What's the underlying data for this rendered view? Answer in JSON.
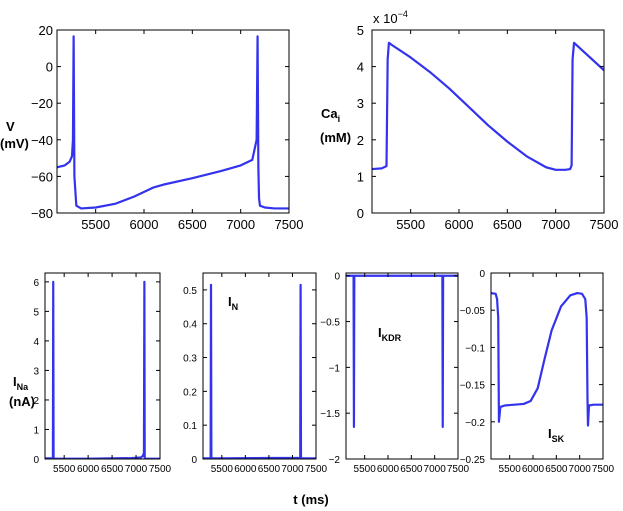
{
  "colors": {
    "trace": "#3333ee",
    "axis": "#000000"
  },
  "xlabel": "t (ms)",
  "chart_data": [
    {
      "id": "voltage",
      "type": "line",
      "ylabel_line1": "V",
      "ylabel_line2": "(mV)",
      "xlim": [
        5100,
        7500
      ],
      "ylim": [
        -80,
        20
      ],
      "xticks": [
        "5500",
        "6000",
        "6500",
        "7000",
        "7500"
      ],
      "xtick_values": [
        5500,
        6000,
        6500,
        7000,
        7500
      ],
      "yticks": [
        "-80",
        "-60",
        "-40",
        "-20",
        "0",
        "20"
      ],
      "ytick_values": [
        -80,
        -60,
        -40,
        -20,
        0,
        20
      ],
      "series": [
        {
          "name": "V",
          "x": [
            5100,
            5180,
            5230,
            5255,
            5265,
            5272,
            5280,
            5300,
            5350,
            5500,
            5700,
            5900,
            6100,
            6200,
            6500,
            6800,
            7000,
            7120,
            7165,
            7175,
            7183,
            7190,
            7200,
            7250,
            7350,
            7500
          ],
          "y": [
            -55,
            -54,
            -52,
            -49,
            -40,
            16.5,
            -60,
            -76,
            -77.5,
            -77,
            -75,
            -71,
            -66,
            -64.5,
            -61,
            -57,
            -54,
            -51,
            -40,
            16.5,
            -55,
            -72,
            -76,
            -77,
            -77.5,
            -77.5
          ]
        }
      ]
    },
    {
      "id": "calcium",
      "type": "line",
      "ylabel_main": "Ca",
      "ylabel_sub": "i",
      "ylabel_line2": "(mM)",
      "multiplier_base": "x 10",
      "multiplier_exp": "−4",
      "xlim": [
        5100,
        7500
      ],
      "ylim": [
        0,
        5
      ],
      "xticks": [
        "5500",
        "6000",
        "6500",
        "7000",
        "7500"
      ],
      "xtick_values": [
        5500,
        6000,
        6500,
        7000,
        7500
      ],
      "yticks": [
        "0",
        "1",
        "2",
        "3",
        "4",
        "5"
      ],
      "ytick_values": [
        0,
        1,
        2,
        3,
        4,
        5
      ],
      "series": [
        {
          "name": "Ca_i",
          "x": [
            5100,
            5200,
            5250,
            5262,
            5275,
            5300,
            5500,
            5700,
            5900,
            6100,
            6300,
            6500,
            6700,
            6900,
            7000,
            7100,
            7150,
            7165,
            7175,
            7190,
            7500
          ],
          "y": [
            1.2,
            1.22,
            1.28,
            4.2,
            4.65,
            4.6,
            4.25,
            3.85,
            3.4,
            2.9,
            2.4,
            1.95,
            1.55,
            1.25,
            1.18,
            1.18,
            1.2,
            1.3,
            4.2,
            4.65,
            3.9
          ]
        }
      ]
    },
    {
      "id": "ina",
      "type": "line",
      "ylabel_main": "I",
      "ylabel_sub": "Na",
      "ylabel_line2": "(nA)",
      "xlim": [
        5100,
        7500
      ],
      "ylim": [
        0,
        6.3
      ],
      "xticks": [
        "5500",
        "6000",
        "6500",
        "7000",
        "7500"
      ],
      "xtick_values": [
        5500,
        6000,
        6500,
        7000,
        7500
      ],
      "yticks": [
        "0",
        "1",
        "2",
        "3",
        "4",
        "5",
        "6"
      ],
      "ytick_values": [
        0,
        1,
        2,
        3,
        4,
        5,
        6
      ],
      "series": [
        {
          "name": "I_Na",
          "x": [
            5100,
            5250,
            5265,
            5272,
            5279,
            5300,
            5500,
            6000,
            6500,
            6900,
            7100,
            7140,
            7165,
            7174,
            7181,
            7200,
            7500
          ],
          "y": [
            0.02,
            0.02,
            0.05,
            6.0,
            0.02,
            0.01,
            0.01,
            0.01,
            0.02,
            0.03,
            0.05,
            0.1,
            0.2,
            6.0,
            0.02,
            0.01,
            0.01
          ]
        }
      ]
    },
    {
      "id": "in",
      "type": "line",
      "annotation_main": "I",
      "annotation_sub": "N",
      "xlim": [
        5100,
        7500
      ],
      "ylim": [
        0,
        0.55
      ],
      "xticks": [
        "5500",
        "6000",
        "6500",
        "7000",
        "7500"
      ],
      "xtick_values": [
        5500,
        6000,
        6500,
        7000,
        7500
      ],
      "yticks": [
        "0",
        "0.1",
        "0.2",
        "0.3",
        "0.4",
        "0.5"
      ],
      "ytick_values": [
        0,
        0.1,
        0.2,
        0.3,
        0.4,
        0.5
      ],
      "series": [
        {
          "name": "I_N",
          "x": [
            5100,
            5262,
            5270,
            5278,
            5500,
            6500,
            7165,
            7173,
            7181,
            7500
          ],
          "y": [
            0.002,
            0.002,
            0.515,
            0.002,
            0.002,
            0.003,
            0.003,
            0.515,
            0.002,
            0.002
          ]
        }
      ]
    },
    {
      "id": "ikdr",
      "type": "line",
      "annotation_main": "I",
      "annotation_sub": "KDR",
      "xlim": [
        5100,
        7500
      ],
      "ylim": [
        -2,
        0.03
      ],
      "xticks": [
        "5500",
        "6000",
        "6500",
        "7000",
        "7500"
      ],
      "xtick_values": [
        5500,
        6000,
        6500,
        7000,
        7500
      ],
      "yticks": [
        "-2",
        "-1.5",
        "-1",
        "-0.5",
        "0"
      ],
      "ytick_values": [
        -2,
        -1.5,
        -1,
        -0.5,
        0
      ],
      "series": [
        {
          "name": "I_KDR",
          "x": [
            5100,
            5262,
            5270,
            5278,
            5500,
            6500,
            7165,
            7173,
            7181,
            7500
          ],
          "y": [
            0,
            0,
            -1.65,
            0,
            0,
            0,
            0,
            -1.65,
            0,
            0
          ]
        }
      ]
    },
    {
      "id": "isk",
      "type": "line",
      "annotation_main": "I",
      "annotation_sub": "SK",
      "xlim": [
        5100,
        7500
      ],
      "ylim": [
        -0.25,
        0
      ],
      "xticks": [
        "5500",
        "6000",
        "6500",
        "7000",
        "7500"
      ],
      "xtick_values": [
        5500,
        6000,
        6500,
        7000,
        7500
      ],
      "yticks": [
        "-0.25",
        "-0.2",
        "-0.15",
        "-0.1",
        "-0.05",
        "0"
      ],
      "ytick_values": [
        -0.25,
        -0.2,
        -0.15,
        -0.1,
        -0.05,
        0
      ],
      "series": [
        {
          "name": "I_SK",
          "x": [
            5100,
            5200,
            5230,
            5255,
            5270,
            5300,
            5400,
            5600,
            5800,
            5950,
            6100,
            6250,
            6400,
            6600,
            6800,
            6950,
            7050,
            7120,
            7150,
            7168,
            7178,
            7200,
            7300,
            7500
          ],
          "y": [
            -0.027,
            -0.028,
            -0.035,
            -0.06,
            -0.2,
            -0.18,
            -0.178,
            -0.177,
            -0.176,
            -0.172,
            -0.155,
            -0.115,
            -0.077,
            -0.045,
            -0.03,
            -0.027,
            -0.028,
            -0.035,
            -0.06,
            -0.17,
            -0.205,
            -0.178,
            -0.177,
            -0.177
          ]
        }
      ]
    }
  ]
}
